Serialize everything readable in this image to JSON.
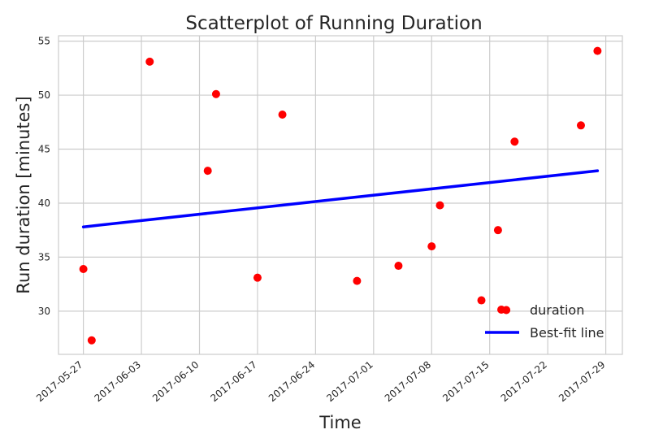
{
  "chart_data": {
    "type": "scatter",
    "title": "Scatterplot of Running Duration",
    "xlabel": "Time",
    "ylabel": "Run duration [minutes]",
    "x_ticks": [
      "2017-05-27",
      "2017-06-03",
      "2017-06-10",
      "2017-06-17",
      "2017-06-24",
      "2017-07-01",
      "2017-07-08",
      "2017-07-15",
      "2017-07-22",
      "2017-07-29"
    ],
    "y_ticks": [
      30,
      35,
      40,
      45,
      50,
      55
    ],
    "xlim": [
      "2017-05-24",
      "2017-07-31"
    ],
    "ylim": [
      26,
      55.5
    ],
    "grid": true,
    "legend_position": "bottom-right",
    "series": [
      {
        "name": "duration",
        "kind": "scatter",
        "color": "#ff0000",
        "points": [
          {
            "x": "2017-05-27",
            "y": 33.9
          },
          {
            "x": "2017-05-28",
            "y": 27.3
          },
          {
            "x": "2017-06-04",
            "y": 53.1
          },
          {
            "x": "2017-06-11",
            "y": 43.0
          },
          {
            "x": "2017-06-12",
            "y": 50.1
          },
          {
            "x": "2017-06-17",
            "y": 33.1
          },
          {
            "x": "2017-06-20",
            "y": 48.2
          },
          {
            "x": "2017-06-29",
            "y": 32.8
          },
          {
            "x": "2017-07-04",
            "y": 34.2
          },
          {
            "x": "2017-07-08",
            "y": 36.0
          },
          {
            "x": "2017-07-09",
            "y": 39.8
          },
          {
            "x": "2017-07-14",
            "y": 31.0
          },
          {
            "x": "2017-07-16",
            "y": 37.5
          },
          {
            "x": "2017-07-17",
            "y": 30.1
          },
          {
            "x": "2017-07-18",
            "y": 45.7
          },
          {
            "x": "2017-07-26",
            "y": 47.2
          },
          {
            "x": "2017-07-28",
            "y": 54.1
          }
        ]
      },
      {
        "name": "Best-fit line",
        "kind": "line",
        "color": "#0000ff",
        "points": [
          {
            "x": "2017-05-27",
            "y": 37.8
          },
          {
            "x": "2017-07-28",
            "y": 43.0
          }
        ]
      }
    ]
  }
}
